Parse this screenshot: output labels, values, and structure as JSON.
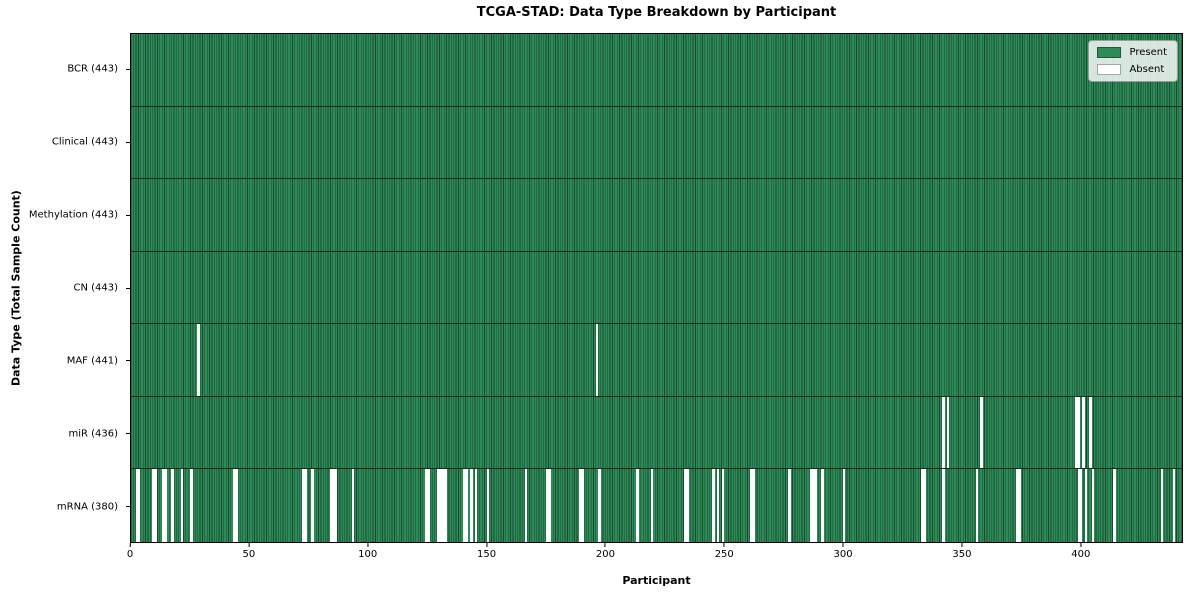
{
  "chart_data": {
    "type": "heatmap",
    "title": "TCGA-STAD: Data Type Breakdown by Participant",
    "xlabel": "Participant",
    "ylabel": "Data Type (Total Sample Count)",
    "n_participants": 443,
    "x_ticks": [
      0,
      50,
      100,
      150,
      200,
      250,
      300,
      350,
      400
    ],
    "xlim": [
      0,
      443
    ],
    "grid": false,
    "legend_position": "upper right",
    "legend": [
      {
        "label": "Present",
        "color": "#2e8b57"
      },
      {
        "label": "Absent",
        "color": "#ffffff"
      }
    ],
    "colors": {
      "present": "#2e8b57",
      "absent": "#ffffff",
      "cell_edge": "#17492f",
      "row_divider": "#0f2b1b",
      "spine": "#000000"
    },
    "rows": [
      {
        "label": "BCR (443)",
        "present_count": 443,
        "absent_participants": []
      },
      {
        "label": "Clinical (443)",
        "present_count": 443,
        "absent_participants": []
      },
      {
        "label": "Methylation (443)",
        "present_count": 443,
        "absent_participants": []
      },
      {
        "label": "CN (443)",
        "present_count": 443,
        "absent_participants": []
      },
      {
        "label": "MAF (441)",
        "present_count": 441,
        "absent_participants": [
          28,
          196
        ]
      },
      {
        "label": "miR (436)",
        "present_count": 436,
        "absent_participants": [
          342,
          344,
          358,
          398,
          399,
          401,
          404
        ]
      },
      {
        "label": "mRNA (380)",
        "present_count": 380,
        "absent_participants": [
          2,
          3,
          9,
          10,
          13,
          14,
          17,
          21,
          25,
          43,
          44,
          72,
          73,
          76,
          84,
          85,
          86,
          93,
          124,
          125,
          129,
          130,
          131,
          132,
          140,
          141,
          143,
          145,
          150,
          166,
          175,
          176,
          189,
          190,
          197,
          213,
          219,
          233,
          234,
          245,
          247,
          249,
          261,
          262,
          277,
          286,
          287,
          288,
          291,
          300,
          333,
          334,
          342,
          356,
          373,
          374,
          399,
          400,
          402,
          405,
          414,
          434,
          439
        ]
      }
    ]
  }
}
